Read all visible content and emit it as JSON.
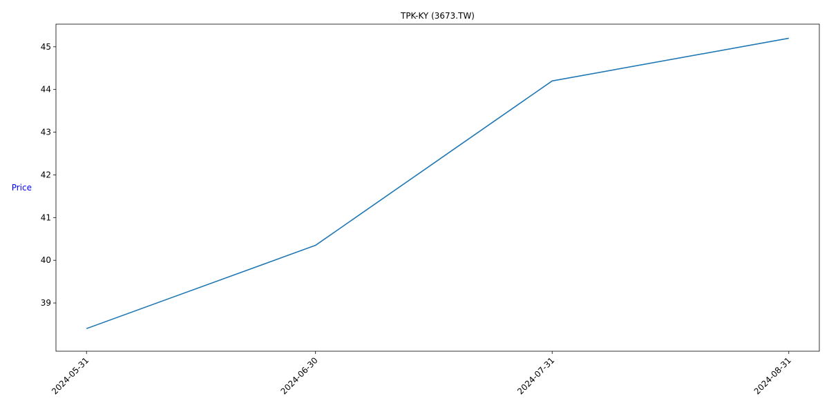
{
  "chart_data": {
    "type": "line",
    "title": "TPK-KY (3673.TW)",
    "xlabel": "",
    "ylabel": "Price",
    "x": [
      "2024-05-31",
      "2024-06-30",
      "2024-07-31",
      "2024-08-31"
    ],
    "series": [
      {
        "values": [
          38.4,
          40.35,
          44.2,
          45.2
        ],
        "color": "#1f77b4"
      }
    ],
    "yticks": [
      39,
      40,
      41,
      42,
      43,
      44,
      45
    ],
    "ylim": [
      37.87,
      45.53
    ],
    "xlim": [
      "2024-05-27",
      "2024-09-04"
    ],
    "grid": false,
    "legend": "none"
  }
}
